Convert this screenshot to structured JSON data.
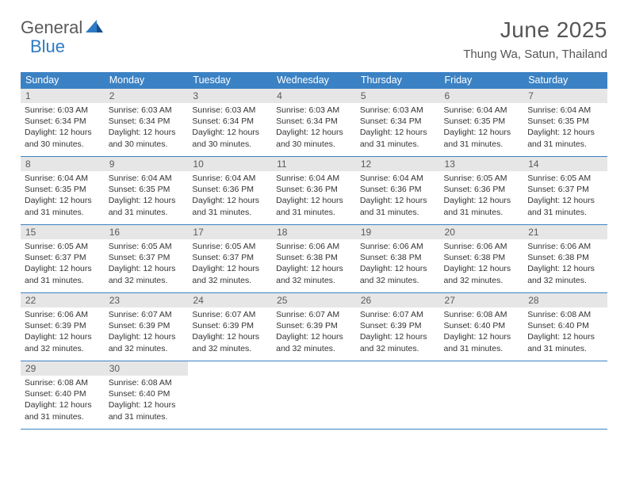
{
  "logo": {
    "text1": "General",
    "text2": "Blue"
  },
  "title": "June 2025",
  "location": "Thung Wa, Satun, Thailand",
  "styling": {
    "header_bg": "#3b82c4",
    "header_text": "#ffffff",
    "daynum_bg": "#e6e6e6",
    "daynum_text": "#5a5a5a",
    "border_color": "#3b82c4",
    "body_fontsize": 10.5,
    "title_fontsize": 28,
    "location_fontsize": 15,
    "dayheader_fontsize": 12.5
  },
  "day_names": [
    "Sunday",
    "Monday",
    "Tuesday",
    "Wednesday",
    "Thursday",
    "Friday",
    "Saturday"
  ],
  "weeks": [
    [
      {
        "num": "1",
        "sunrise": "6:03 AM",
        "sunset": "6:34 PM",
        "daylight": "12 hours and 30 minutes."
      },
      {
        "num": "2",
        "sunrise": "6:03 AM",
        "sunset": "6:34 PM",
        "daylight": "12 hours and 30 minutes."
      },
      {
        "num": "3",
        "sunrise": "6:03 AM",
        "sunset": "6:34 PM",
        "daylight": "12 hours and 30 minutes."
      },
      {
        "num": "4",
        "sunrise": "6:03 AM",
        "sunset": "6:34 PM",
        "daylight": "12 hours and 30 minutes."
      },
      {
        "num": "5",
        "sunrise": "6:03 AM",
        "sunset": "6:34 PM",
        "daylight": "12 hours and 31 minutes."
      },
      {
        "num": "6",
        "sunrise": "6:04 AM",
        "sunset": "6:35 PM",
        "daylight": "12 hours and 31 minutes."
      },
      {
        "num": "7",
        "sunrise": "6:04 AM",
        "sunset": "6:35 PM",
        "daylight": "12 hours and 31 minutes."
      }
    ],
    [
      {
        "num": "8",
        "sunrise": "6:04 AM",
        "sunset": "6:35 PM",
        "daylight": "12 hours and 31 minutes."
      },
      {
        "num": "9",
        "sunrise": "6:04 AM",
        "sunset": "6:35 PM",
        "daylight": "12 hours and 31 minutes."
      },
      {
        "num": "10",
        "sunrise": "6:04 AM",
        "sunset": "6:36 PM",
        "daylight": "12 hours and 31 minutes."
      },
      {
        "num": "11",
        "sunrise": "6:04 AM",
        "sunset": "6:36 PM",
        "daylight": "12 hours and 31 minutes."
      },
      {
        "num": "12",
        "sunrise": "6:04 AM",
        "sunset": "6:36 PM",
        "daylight": "12 hours and 31 minutes."
      },
      {
        "num": "13",
        "sunrise": "6:05 AM",
        "sunset": "6:36 PM",
        "daylight": "12 hours and 31 minutes."
      },
      {
        "num": "14",
        "sunrise": "6:05 AM",
        "sunset": "6:37 PM",
        "daylight": "12 hours and 31 minutes."
      }
    ],
    [
      {
        "num": "15",
        "sunrise": "6:05 AM",
        "sunset": "6:37 PM",
        "daylight": "12 hours and 31 minutes."
      },
      {
        "num": "16",
        "sunrise": "6:05 AM",
        "sunset": "6:37 PM",
        "daylight": "12 hours and 32 minutes."
      },
      {
        "num": "17",
        "sunrise": "6:05 AM",
        "sunset": "6:37 PM",
        "daylight": "12 hours and 32 minutes."
      },
      {
        "num": "18",
        "sunrise": "6:06 AM",
        "sunset": "6:38 PM",
        "daylight": "12 hours and 32 minutes."
      },
      {
        "num": "19",
        "sunrise": "6:06 AM",
        "sunset": "6:38 PM",
        "daylight": "12 hours and 32 minutes."
      },
      {
        "num": "20",
        "sunrise": "6:06 AM",
        "sunset": "6:38 PM",
        "daylight": "12 hours and 32 minutes."
      },
      {
        "num": "21",
        "sunrise": "6:06 AM",
        "sunset": "6:38 PM",
        "daylight": "12 hours and 32 minutes."
      }
    ],
    [
      {
        "num": "22",
        "sunrise": "6:06 AM",
        "sunset": "6:39 PM",
        "daylight": "12 hours and 32 minutes."
      },
      {
        "num": "23",
        "sunrise": "6:07 AM",
        "sunset": "6:39 PM",
        "daylight": "12 hours and 32 minutes."
      },
      {
        "num": "24",
        "sunrise": "6:07 AM",
        "sunset": "6:39 PM",
        "daylight": "12 hours and 32 minutes."
      },
      {
        "num": "25",
        "sunrise": "6:07 AM",
        "sunset": "6:39 PM",
        "daylight": "12 hours and 32 minutes."
      },
      {
        "num": "26",
        "sunrise": "6:07 AM",
        "sunset": "6:39 PM",
        "daylight": "12 hours and 32 minutes."
      },
      {
        "num": "27",
        "sunrise": "6:08 AM",
        "sunset": "6:40 PM",
        "daylight": "12 hours and 31 minutes."
      },
      {
        "num": "28",
        "sunrise": "6:08 AM",
        "sunset": "6:40 PM",
        "daylight": "12 hours and 31 minutes."
      }
    ],
    [
      {
        "num": "29",
        "sunrise": "6:08 AM",
        "sunset": "6:40 PM",
        "daylight": "12 hours and 31 minutes."
      },
      {
        "num": "30",
        "sunrise": "6:08 AM",
        "sunset": "6:40 PM",
        "daylight": "12 hours and 31 minutes."
      },
      null,
      null,
      null,
      null,
      null
    ]
  ],
  "labels": {
    "sunrise_prefix": "Sunrise: ",
    "sunset_prefix": "Sunset: ",
    "daylight_prefix": "Daylight: "
  }
}
